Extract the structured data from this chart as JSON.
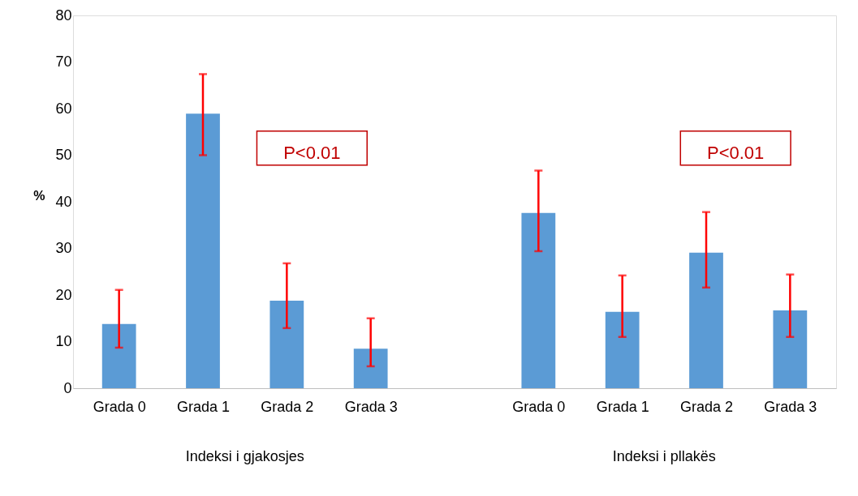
{
  "chart_data": {
    "type": "bar",
    "ylabel": "%",
    "categories": [
      "Grada 0",
      "Grada 1",
      "Grada 2",
      "Grada 3",
      null,
      "Grada 0",
      "Grada 1",
      "Grada 2",
      "Grada 3"
    ],
    "values": [
      13.8,
      58.9,
      18.8,
      8.5,
      null,
      37.6,
      16.4,
      29.1,
      16.7
    ],
    "errors": [
      [
        8.7,
        21.1
      ],
      [
        50.0,
        67.4
      ],
      [
        12.9,
        26.8
      ],
      [
        4.7,
        15.0
      ],
      null,
      [
        29.4,
        46.7
      ],
      [
        11.0,
        24.2
      ],
      [
        21.6,
        37.8
      ],
      [
        11.0,
        24.4
      ]
    ],
    "color": "#5b9bd5",
    "ylim": [
      0,
      80
    ],
    "yticks": [
      0,
      10,
      20,
      30,
      40,
      50,
      60,
      70,
      80
    ],
    "grid": false,
    "annotations": [
      "P<0.01",
      "P<0.01",
      "Indeksi i gjakosjes",
      "Indeksi i pllakës"
    ]
  }
}
